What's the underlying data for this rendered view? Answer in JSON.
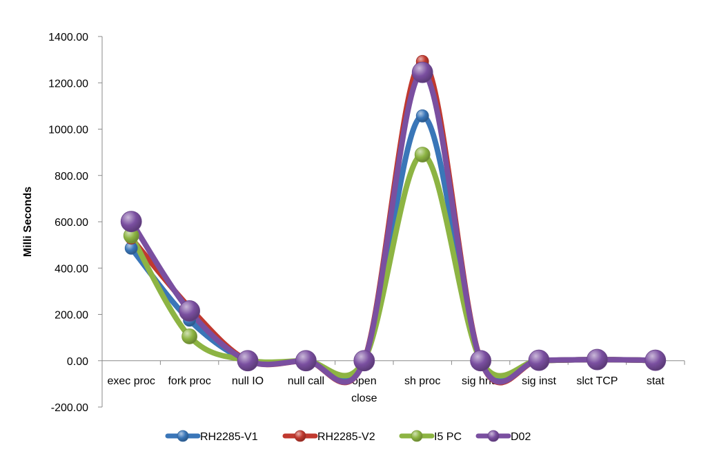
{
  "chart_data": {
    "type": "line",
    "title": "",
    "xlabel": "",
    "ylabel": "Milli Seconds",
    "ylim": [
      -200,
      1400
    ],
    "yticks": [
      "1400.00",
      "1200.00",
      "1000.00",
      "800.00",
      "600.00",
      "400.00",
      "200.00",
      "0.00",
      "-200.00"
    ],
    "ytick_values": [
      1400,
      1200,
      1000,
      800,
      600,
      400,
      200,
      0,
      -200
    ],
    "categories": [
      [
        "exec proc"
      ],
      [
        "fork proc"
      ],
      [
        "null IO"
      ],
      [
        "null call"
      ],
      [
        "open",
        "close"
      ],
      [
        "sh proc"
      ],
      [
        "sig hndl"
      ],
      [
        "sig inst"
      ],
      [
        "slct TCP"
      ],
      [
        "stat"
      ]
    ],
    "smooth": true,
    "grid": false,
    "legend_position": "bottom",
    "series": [
      {
        "name": "RH2285-V1",
        "color": "#3A76B8",
        "values": [
          486,
          175,
          1,
          0,
          2,
          1057,
          1,
          1,
          5,
          1
        ]
      },
      {
        "name": "RH2285-V2",
        "color": "#C0392F",
        "values": [
          530,
          230,
          1,
          0,
          2,
          1292,
          1,
          1,
          5,
          1
        ]
      },
      {
        "name": "I5 PC",
        "color": "#8DB443",
        "values": [
          540,
          105,
          2,
          0,
          2,
          890,
          1,
          1,
          5,
          1
        ]
      },
      {
        "name": "D02",
        "color": "#7A4FA0",
        "values": [
          601,
          215,
          0,
          0,
          0,
          1245,
          0,
          2,
          5,
          2
        ]
      }
    ]
  }
}
